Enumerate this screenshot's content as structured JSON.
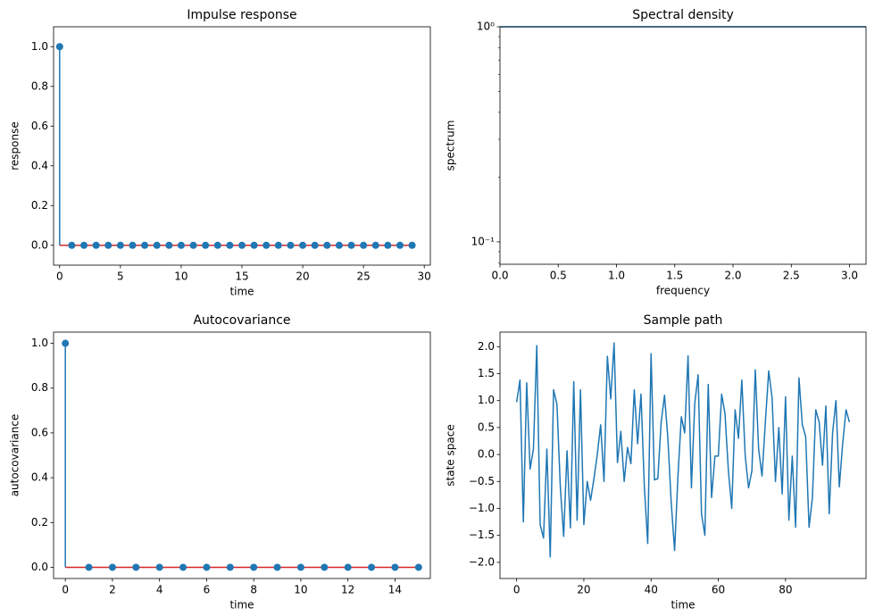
{
  "chart_data": [
    {
      "type": "stem",
      "title": "Impulse response",
      "xlabel": "time",
      "ylabel": "response",
      "x": [
        0,
        1,
        2,
        3,
        4,
        5,
        6,
        7,
        8,
        9,
        10,
        11,
        12,
        13,
        14,
        15,
        16,
        17,
        18,
        19,
        20,
        21,
        22,
        23,
        24,
        25,
        26,
        27,
        28,
        29
      ],
      "values": [
        1,
        0,
        0,
        0,
        0,
        0,
        0,
        0,
        0,
        0,
        0,
        0,
        0,
        0,
        0,
        0,
        0,
        0,
        0,
        0,
        0,
        0,
        0,
        0,
        0,
        0,
        0,
        0,
        0,
        0
      ],
      "color": "#1f77b4",
      "baseline_color": "#d62728",
      "xlim": [
        -0.5,
        30.5
      ],
      "xticks": [
        0,
        5,
        10,
        15,
        20,
        25,
        30
      ],
      "ylim": [
        -0.1,
        1.1
      ],
      "yticks": [
        {
          "value": 0,
          "label": "0.0"
        },
        {
          "value": 0.2,
          "label": "0.2"
        },
        {
          "value": 0.4,
          "label": "0.4"
        },
        {
          "value": 0.6,
          "label": "0.6"
        },
        {
          "value": 0.8,
          "label": "0.8"
        },
        {
          "value": 1,
          "label": "1.0"
        }
      ]
    },
    {
      "type": "line",
      "title": "Spectral density",
      "xlabel": "frequency",
      "ylabel": "spectrum",
      "x": [
        0,
        3.14159
      ],
      "values": [
        1,
        1
      ],
      "color": "#1f77b4",
      "yscale": "log",
      "xlim": [
        0,
        3.14159
      ],
      "xticks": [
        {
          "value": 0,
          "label": "0.0"
        },
        {
          "value": 0.5,
          "label": "0.5"
        },
        {
          "value": 1,
          "label": "1.0"
        },
        {
          "value": 1.5,
          "label": "1.5"
        },
        {
          "value": 2,
          "label": "2.0"
        },
        {
          "value": 2.5,
          "label": "2.5"
        },
        {
          "value": 3,
          "label": "3.0"
        }
      ],
      "ylim": [
        0.0787,
        1
      ],
      "yticks": [
        {
          "value": 0.1,
          "label": "10⁻¹"
        },
        {
          "value": 1,
          "label": "10⁰"
        }
      ],
      "yminorticks": [
        0.08,
        0.09,
        0.2,
        0.3,
        0.4,
        0.5,
        0.6,
        0.7,
        0.8,
        0.9
      ]
    },
    {
      "type": "stem",
      "title": "Autocovariance",
      "xlabel": "time",
      "ylabel": "autocovariance",
      "x": [
        0,
        1,
        2,
        3,
        4,
        5,
        6,
        7,
        8,
        9,
        10,
        11,
        12,
        13,
        14,
        15
      ],
      "values": [
        1,
        0,
        0,
        0,
        0,
        0,
        0,
        0,
        0,
        0,
        0,
        0,
        0,
        0,
        0,
        0
      ],
      "color": "#1f77b4",
      "baseline_color": "#d62728",
      "xlim": [
        -0.5,
        15.5
      ],
      "xticks": [
        0,
        2,
        4,
        6,
        8,
        10,
        12,
        14
      ],
      "ylim": [
        -0.05,
        1.05
      ],
      "yticks": [
        {
          "value": 0,
          "label": "0.0"
        },
        {
          "value": 0.2,
          "label": "0.2"
        },
        {
          "value": 0.4,
          "label": "0.4"
        },
        {
          "value": 0.6,
          "label": "0.6"
        },
        {
          "value": 0.8,
          "label": "0.8"
        },
        {
          "value": 1,
          "label": "1.0"
        }
      ]
    },
    {
      "type": "line",
      "title": "Sample path",
      "xlabel": "time",
      "ylabel": "state space",
      "x": [
        0,
        1,
        2,
        3,
        4,
        5,
        6,
        7,
        8,
        9,
        10,
        11,
        12,
        13,
        14,
        15,
        16,
        17,
        18,
        19,
        20,
        21,
        22,
        23,
        24,
        25,
        26,
        27,
        28,
        29,
        30,
        31,
        32,
        33,
        34,
        35,
        36,
        37,
        38,
        39,
        40,
        41,
        42,
        43,
        44,
        45,
        46,
        47,
        48,
        49,
        50,
        51,
        52,
        53,
        54,
        55,
        56,
        57,
        58,
        59,
        60,
        61,
        62,
        63,
        64,
        65,
        66,
        67,
        68,
        69,
        70,
        71,
        72,
        73,
        74,
        75,
        76,
        77,
        78,
        79,
        80,
        81,
        82,
        83,
        84,
        85,
        86,
        87,
        88,
        89,
        90,
        91,
        92,
        93,
        94,
        95,
        96,
        97,
        98,
        99
      ],
      "values": [
        0.97,
        1.38,
        -1.25,
        1.33,
        -0.27,
        0.1,
        2.02,
        -1.3,
        -1.55,
        0.1,
        -1.9,
        1.2,
        0.93,
        -0.6,
        -1.52,
        0.07,
        -1.36,
        1.35,
        -1.22,
        1.2,
        -1.3,
        -0.5,
        -0.85,
        -0.45,
        0.0,
        0.55,
        -0.5,
        1.82,
        1.03,
        2.07,
        -0.15,
        0.43,
        -0.5,
        0.13,
        -0.17,
        1.2,
        0.2,
        1.12,
        -0.6,
        -1.65,
        1.87,
        -0.47,
        -0.45,
        0.6,
        1.1,
        0.3,
        -0.9,
        -1.78,
        -0.4,
        0.7,
        0.4,
        1.83,
        -0.62,
        0.95,
        1.48,
        -1.1,
        -1.5,
        1.3,
        -0.8,
        -0.03,
        -0.03,
        1.12,
        0.75,
        -0.3,
        -1.0,
        0.83,
        0.3,
        1.38,
        -0.02,
        -0.62,
        -0.3,
        1.57,
        0.1,
        -0.4,
        0.6,
        1.55,
        1.05,
        -0.5,
        0.5,
        -0.73,
        1.07,
        -1.22,
        -0.03,
        -1.35,
        1.42,
        0.55,
        0.33,
        -1.35,
        -0.8,
        0.83,
        0.6,
        -0.2,
        0.9,
        -1.1,
        0.4,
        1.0,
        -0.6,
        0.2,
        0.83,
        0.6
      ],
      "color": "#1f77b4",
      "xlim": [
        -4.95,
        103.95
      ],
      "xticks": [
        0,
        20,
        40,
        60,
        80
      ],
      "ylim": [
        -2.3,
        2.27
      ],
      "yticks": [
        {
          "value": -2,
          "label": "−2.0"
        },
        {
          "value": -1.5,
          "label": "−1.5"
        },
        {
          "value": -1,
          "label": "−1.0"
        },
        {
          "value": -0.5,
          "label": "−0.5"
        },
        {
          "value": 0,
          "label": "0.0"
        },
        {
          "value": 0.5,
          "label": "0.5"
        },
        {
          "value": 1,
          "label": "1.0"
        },
        {
          "value": 1.5,
          "label": "1.5"
        },
        {
          "value": 2,
          "label": "2.0"
        }
      ]
    }
  ]
}
